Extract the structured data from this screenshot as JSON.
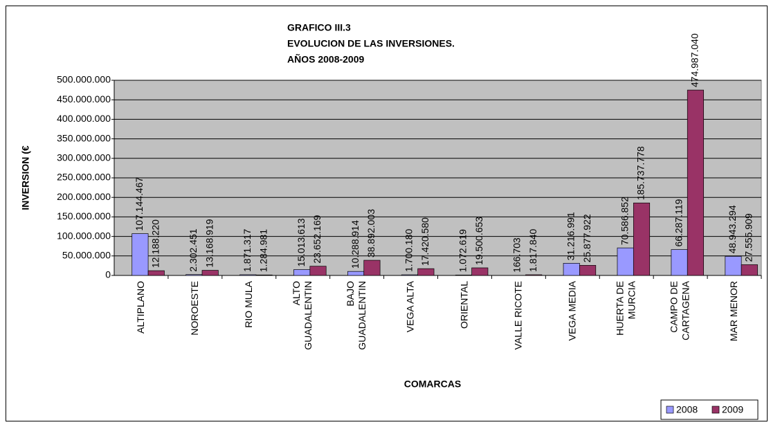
{
  "chart_data": {
    "type": "bar",
    "title": [
      "GRAFICO III.3",
      "EVOLUCION DE LAS INVERSIONES.",
      "AÑOS 2008-2009"
    ],
    "x_label": "COMARCAS",
    "y_label": "INVERSION (€",
    "categories": [
      "ALTIPLANO",
      "NOROESTE",
      "RIO MULA",
      "ALTO\nGUADALENTIN",
      "BAJO\nGUADALENTIN",
      "VEGA ALTA",
      "ORIENTAL",
      "VALLE RICOTE",
      "VEGA MEDIA",
      "HUERTA DE\nMURCIA",
      "CAMPO DE\nCARTAGENA",
      "MAR MENOR"
    ],
    "series": [
      {
        "name": "2008",
        "color": "#9999ff",
        "values": [
          107144467,
          2302451,
          1871317,
          15013613,
          10288914,
          1700180,
          1072619,
          166703,
          31216991,
          70586852,
          66287119,
          48943294
        ],
        "value_labels": [
          "107.144.467",
          "2.302.451",
          "1.871.317",
          "15.013.613",
          "10.288.914",
          "1.700.180",
          "1.072.619",
          "166.703",
          "31.216.991",
          "70.586.852",
          "66.287.119",
          "48.943.294"
        ]
      },
      {
        "name": "2009",
        "color": "#993366",
        "values": [
          12188220,
          13168919,
          1284981,
          23652169,
          38892003,
          17420580,
          19500653,
          1817840,
          25877922,
          185737778,
          474987040,
          27555909
        ],
        "value_labels": [
          "12.188.220",
          "13.168.919",
          "1.284.981",
          "23.652.169",
          "38.892.003",
          "17.420.580",
          "19.500.653",
          "1.817.840",
          "25.877.922",
          "185.737.778",
          "474.987.040",
          "27.555.909"
        ]
      }
    ],
    "ylim": [
      0,
      500000000
    ],
    "yticks": [
      0,
      {
        "value": 50000000,
        "label": "50.000.000"
      },
      {
        "value": 100000000,
        "label": "100.000.000"
      },
      {
        "value": 150000000,
        "label": "150.000.000"
      },
      {
        "value": 200000000,
        "label": "200.000.000"
      },
      {
        "value": 250000000,
        "label": "250.000.000"
      },
      {
        "value": 300000000,
        "label": "300.000.000"
      },
      {
        "value": 350000000,
        "label": "350.000.000"
      },
      {
        "value": 400000000,
        "label": "400.000.000"
      },
      {
        "value": 450000000,
        "label": "450.000.000"
      },
      {
        "value": 500000000,
        "label": "500.000.000"
      }
    ],
    "grid": true,
    "legend": "bottom-right",
    "plot_background": "#c0c0c0"
  }
}
